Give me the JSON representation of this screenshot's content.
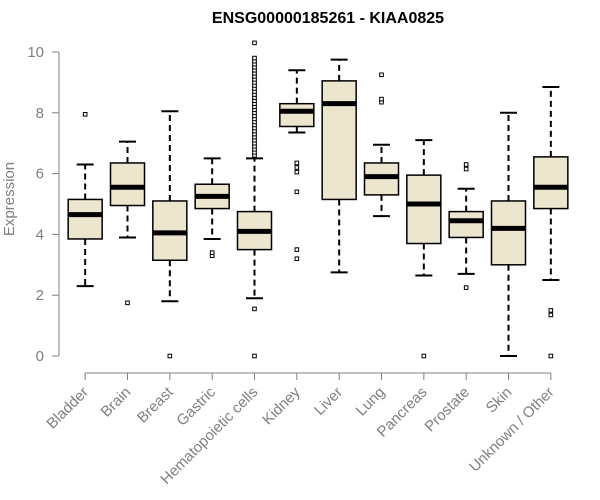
{
  "chart_data": {
    "type": "boxplot",
    "title": "ENSG00000185261 - KIAA0825",
    "xlabel": "",
    "ylabel": "Expression",
    "ylim": [
      0,
      10
    ],
    "yticks": [
      0,
      2,
      4,
      6,
      8,
      10
    ],
    "grid": false,
    "box_fill": "#ede6cf",
    "box_stroke": "#000000",
    "axis_color": "#808080",
    "categories": [
      "Bladder",
      "Brain",
      "Breast",
      "Gastric",
      "Hematopoietic cells",
      "Kidney",
      "Liver",
      "Lung",
      "Pancreas",
      "Prostate",
      "Skin",
      "Unknown / Other"
    ],
    "boxes": [
      {
        "name": "Bladder",
        "whisker_low": 2.3,
        "q1": 3.85,
        "median": 4.65,
        "q3": 5.15,
        "whisker_high": 6.3,
        "outliers": [
          7.95
        ]
      },
      {
        "name": "Brain",
        "whisker_low": 3.9,
        "q1": 4.95,
        "median": 5.55,
        "q3": 6.35,
        "whisker_high": 7.05,
        "outliers": [
          1.75
        ]
      },
      {
        "name": "Breast",
        "whisker_low": 1.8,
        "q1": 3.15,
        "median": 4.05,
        "q3": 5.1,
        "whisker_high": 8.05,
        "outliers": [
          0.0
        ]
      },
      {
        "name": "Gastric",
        "whisker_low": 3.85,
        "q1": 4.85,
        "median": 5.25,
        "q3": 5.65,
        "whisker_high": 6.5,
        "outliers": [
          3.3,
          3.4
        ]
      },
      {
        "name": "Hematopoietic cells",
        "whisker_low": 1.9,
        "q1": 3.5,
        "median": 4.1,
        "q3": 4.75,
        "whisker_high": 6.5,
        "outliers": [
          0.0,
          1.55,
          6.6,
          6.7,
          6.8,
          6.9,
          7.0,
          7.1,
          7.2,
          7.3,
          7.4,
          7.5,
          7.6,
          7.7,
          7.8,
          7.9,
          8.0,
          8.1,
          8.2,
          8.3,
          8.4,
          8.5,
          8.6,
          8.7,
          8.8,
          8.9,
          9.0,
          9.1,
          9.2,
          9.3,
          9.4,
          9.5,
          9.6,
          9.7,
          9.8,
          10.3
        ]
      },
      {
        "name": "Kidney",
        "whisker_low": 7.35,
        "q1": 7.55,
        "median": 8.05,
        "q3": 8.3,
        "whisker_high": 9.4,
        "outliers": [
          3.2,
          3.5,
          5.4,
          6.05,
          6.2,
          6.35
        ]
      },
      {
        "name": "Liver",
        "whisker_low": 2.75,
        "q1": 5.15,
        "median": 8.3,
        "q3": 9.05,
        "whisker_high": 9.75,
        "outliers": []
      },
      {
        "name": "Lung",
        "whisker_low": 4.6,
        "q1": 5.3,
        "median": 5.9,
        "q3": 6.35,
        "whisker_high": 6.95,
        "outliers": [
          8.35,
          8.45,
          9.25
        ]
      },
      {
        "name": "Pancreas",
        "whisker_low": 2.65,
        "q1": 3.7,
        "median": 5.0,
        "q3": 5.95,
        "whisker_high": 7.1,
        "outliers": [
          0.0
        ]
      },
      {
        "name": "Prostate",
        "whisker_low": 2.7,
        "q1": 3.9,
        "median": 4.45,
        "q3": 4.75,
        "whisker_high": 5.5,
        "outliers": [
          2.25,
          6.15,
          6.3
        ]
      },
      {
        "name": "Skin",
        "whisker_low": 0.0,
        "q1": 3.0,
        "median": 4.2,
        "q3": 5.1,
        "whisker_high": 8.0,
        "outliers": []
      },
      {
        "name": "Unknown / Other",
        "whisker_low": 2.5,
        "q1": 4.85,
        "median": 5.55,
        "q3": 6.55,
        "whisker_high": 8.85,
        "outliers": [
          0.0,
          1.35,
          1.5
        ]
      }
    ]
  }
}
